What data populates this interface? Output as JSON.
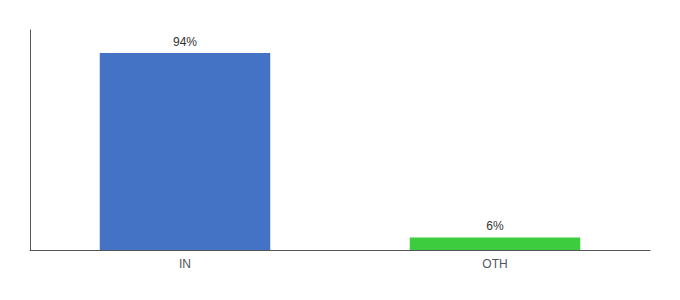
{
  "chart_data": {
    "type": "bar",
    "categories": [
      "IN",
      "OTH"
    ],
    "values": [
      94,
      6
    ],
    "colors": [
      "#4472c4",
      "#3dcc3d"
    ],
    "value_labels": [
      "94%",
      "6%"
    ],
    "data_labels": true,
    "ylim": [
      0,
      105
    ],
    "tick_labels": "x",
    "grid": false
  }
}
